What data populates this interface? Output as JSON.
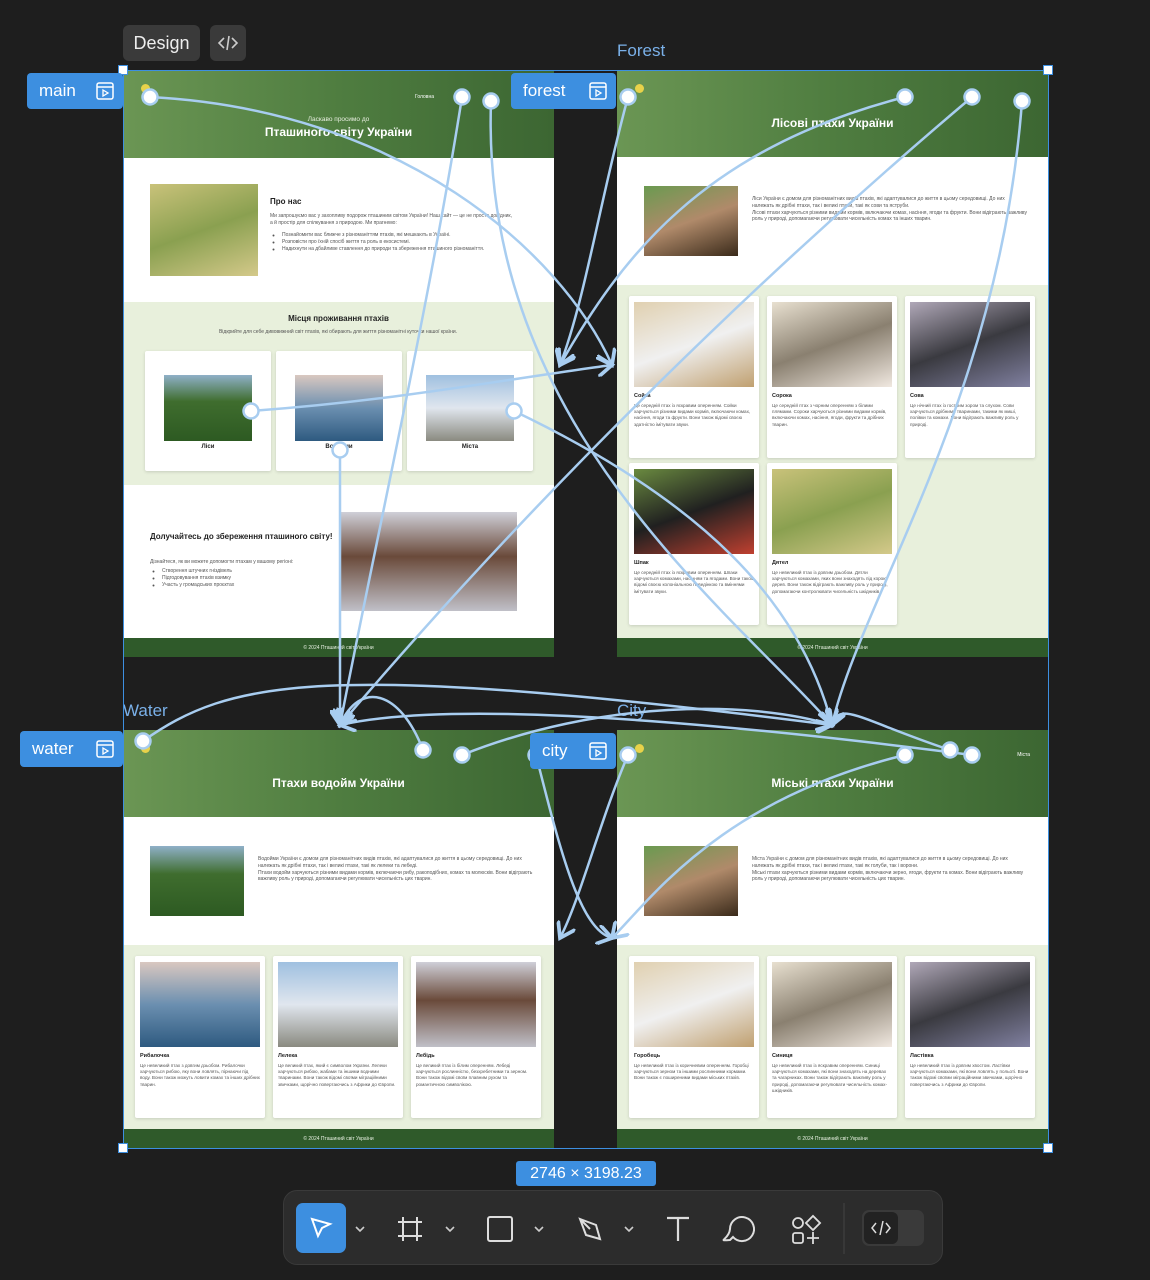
{
  "ui": {
    "design_tab": "Design",
    "size_label": "2746 × 3198.23"
  },
  "main": {
    "tag": "main",
    "nav": "Головна",
    "welcome": "Ласкаво просимо до",
    "title": "Пташиного світу України",
    "about": {
      "title": "Про нас",
      "text": "Ми запрошуємо вас у захопливу подорож пташиним світом України! Наш сайт — це не просто довідник, а й простір для спілкування з природою. Ми прагнемо:",
      "bullets": [
        "Познайомити вас ближче з різноманіттям птахів, які мешкають в Україні.",
        "Розповісти про їхній спосіб життя та роль в екосистемі.",
        "Надихнути на дбайливе ставлення до природи та збереження пташиного різноманіття."
      ]
    },
    "habitats": {
      "title": "Місця проживання птахів",
      "text": "Відкрийте для себе дивовижний світ птахів, які обирають для життя різноманітні куточки нашої країни.",
      "cards": [
        "Ліси",
        "Водойми",
        "Міста"
      ]
    },
    "join": {
      "title": "Долучайтесь до збереження пташиного світу!",
      "text": "Дізнайтеся, як ви можете допомогти птахам у вашому регіоні:",
      "bullets": [
        "Створення штучних гніздівель",
        "Підгодовування птахів взимку",
        "Участь у громадських проєктах"
      ]
    },
    "footer": "© 2024 Пташиний світ України"
  },
  "pages": [
    {
      "tag": "forest",
      "label": "Forest",
      "title": "Лісові птахи України",
      "intro": [
        "Ліси України є домом для різноманітних видів птахів, які адаптувалися до життя в цьому середовищі. До них належать як дрібні птахи, так і великі птахи, такі як сови та яструби.",
        "Лісові птахи харчуються різними видами кормів, включаючи комах, насіння, ягоди та фрукти. Вони відіграють важливу роль у природі, допомагаючи регулювати чисельність комах та інших тварин."
      ],
      "birds": [
        {
          "name": "Сойка",
          "text": "Це середній птах із яскравим оперенням. Сойки харчуються різними видами кормів, включаючи комах, насіння, ягоди та фрукти. Вони також відомі своєю здатністю імітувати звуки."
        },
        {
          "name": "Сорока",
          "text": "Це середній птах з чорним оперенням з білими плямами. Сороки харчуються різними видами кормів, включаючи комах, насіння, ягоди, фрукти та дрібних тварин."
        },
        {
          "name": "Сова",
          "text": "Це нічний птах із гострим зором та слухом. Сови харчуються дрібними тваринами, такими як миші, полівки та комахи. Вони відіграють важливу роль у природі."
        },
        {
          "name": "Шпак",
          "text": "Це середній птах із яскравим оперенням. Шпаки харчуються комахами, насінням та ягодами. Вони також відомі своєю колоніальною поведінкою та вміннями імітувати звуки."
        },
        {
          "name": "Дятел",
          "text": "Це невеликий птах із довгим дзьобом. Дятли харчуються комахами, яких вони знаходять під корою дерев. Вони також відіграють важливу роль у природі, допомагаючи контролювати чисельність шкідників."
        }
      ],
      "footer": "© 2024 Пташиний світ України"
    },
    {
      "tag": "water",
      "label": "Water",
      "title": "Птахи водойм України",
      "intro": [
        "Водойми України є домом для різноманітних видів птахів, які адаптувалися до життя в цьому середовищі. До них належать як дрібні птахи, так і великі птахи, такі як лелеки та лебеді.",
        "Птахи водойм харчуються різними видами кормів, включаючи рибу, ракоподібних, комах та молюсків. Вони відіграють важливу роль у природі, допомагаючи регулювати чисельність цих тварин."
      ],
      "birds": [
        {
          "name": "Рибалочка",
          "text": "Це невеликий птах з довгим дзьобом. Рибалочки харчуються рибою, яку вони ловлять, пірнаючи під воду. Вони також можуть ловити комах та інших дрібних тварин."
        },
        {
          "name": "Лелека",
          "text": "Це великий птах, який є символом України. Лелеки харчуються рибою, жабами та іншими водними тваринами. Вони також відомі своїми міграційними звичками, щорічно повертаючись з Африки до Європи."
        },
        {
          "name": "Лебідь",
          "text": "Це великий птах із білим оперенням. Лебеді харчуються рослинністю, безхребетними та зерном. Вони також відомі своїм плавним рухом та романтичною символікою."
        }
      ],
      "footer": "© 2024 Пташиний світ України"
    },
    {
      "tag": "city",
      "label": "City",
      "title": "Міські птахи України",
      "nav": "Міста",
      "intro": [
        "Міста України є домом для різноманітних видів птахів, які адаптувалися до життя в цьому середовищі. До них належать як дрібні птахи, так і великі птахи, такі як голуби, так і ворони.",
        "Міські птахи харчуються різними видами кормів, включаючи зерно, ягоди, фрукти та комах. Вони відіграють важливу роль у природі, допомагаючи регулювати чисельність цих тварин."
      ],
      "birds": [
        {
          "name": "Горобець",
          "text": "Це невеликий птах із коричневим оперенням. Горобці харчуються зерном та іншими рослинними кормами. Вони також є поширеними видами міських птахів."
        },
        {
          "name": "Синиця",
          "text": "Це невеликий птах із яскравим оперенням. Синиці харчуються комахами, які вони знаходять на деревах та чагарниках. Вони також відіграють важливу роль у природі, допомагаючи регулювати чисельність комах-шкідників."
        },
        {
          "name": "Ластівка",
          "text": "Це невеликий птах із довгим хвостом. Ластівки харчуються комахами, які вони ловлять у польоті. Вони також відомі своїми міграційними звичками, щорічно повертаючись з Африки до Європи."
        }
      ],
      "footer": "© 2024 Пташиний світ України"
    }
  ]
}
